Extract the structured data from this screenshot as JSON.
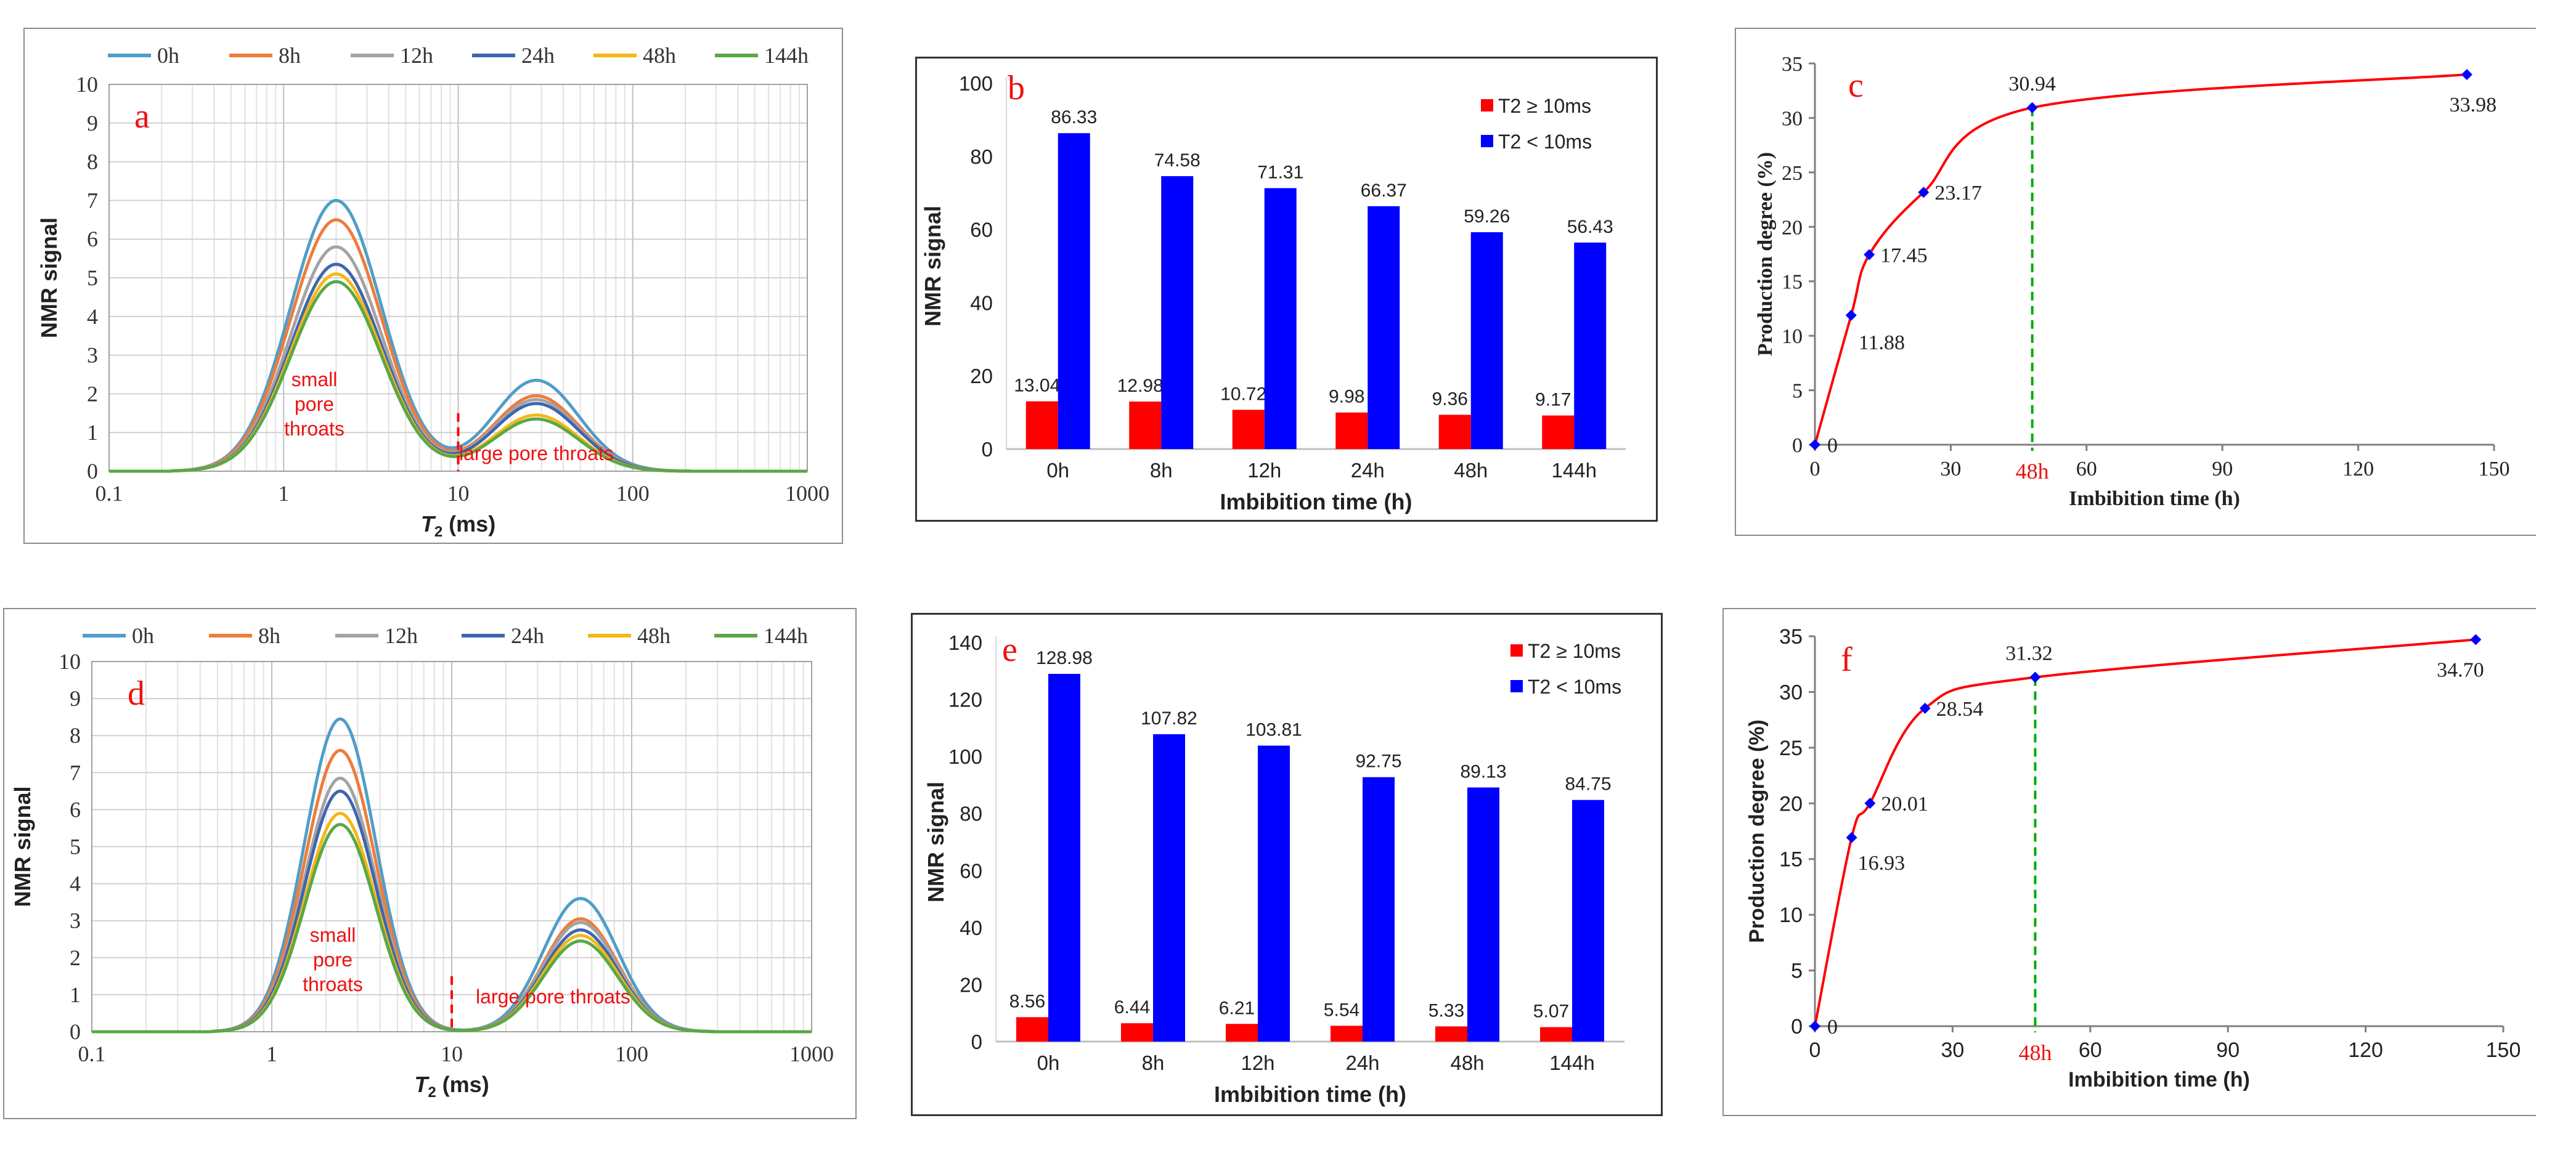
{
  "colors": {
    "0h": "#4f9ec9",
    "8h": "#ee7c3a",
    "12h": "#a3a3a3",
    "24h": "#3e66b0",
    "48h": "#f5b716",
    "144h": "#5aa845",
    "t2_ge": "#ff0000",
    "t2_lt": "#0000ff",
    "curve": "#ff0000",
    "point": "#0000ff",
    "dash_red": "#ff0000",
    "dash_green": "#00aa00"
  },
  "panels": {
    "a": {
      "letter": "a",
      "chart_data": {
        "type": "line",
        "x_scale": "log",
        "xlim": [
          0.1,
          1000
        ],
        "ylim": [
          0,
          10
        ],
        "xlabel_italic": "T",
        "xlabel_sub": "2",
        "xlabel_rest": " (ms)",
        "ylabel": "NMR signal",
        "xtick_labels": [
          "0.1",
          "1",
          "10",
          "100",
          "1000"
        ],
        "ytick_labels": [
          "0",
          "1",
          "2",
          "3",
          "4",
          "5",
          "6",
          "7",
          "8",
          "9",
          "10"
        ],
        "legend_placement": "top",
        "series": [
          {
            "name": "0h",
            "peak1": 7.0,
            "peak2": 2.35
          },
          {
            "name": "8h",
            "peak1": 6.5,
            "peak2": 1.95
          },
          {
            "name": "12h",
            "peak1": 5.8,
            "peak2": 1.85
          },
          {
            "name": "24h",
            "peak1": 5.35,
            "peak2": 1.75
          },
          {
            "name": "48h",
            "peak1": 5.1,
            "peak2": 1.45
          },
          {
            "name": "144h",
            "peak1": 4.9,
            "peak2": 1.35
          }
        ],
        "peak1_t2": 2.0,
        "peak2_t2": 28,
        "start_t2": 0.22,
        "end_t2": 220,
        "divider_t2": 10,
        "annotations": [
          "small",
          "pore",
          "throats",
          "large pore throats"
        ]
      }
    },
    "b": {
      "letter": "b",
      "chart_data": {
        "type": "bar",
        "categories": [
          "0h",
          "8h",
          "12h",
          "24h",
          "48h",
          "144h"
        ],
        "series": [
          {
            "name": "T2 ≥ 10ms",
            "values": [
              13.04,
              12.98,
              10.72,
              9.98,
              9.36,
              9.17
            ],
            "labels": [
              "13.04",
              "12.98",
              "10.72",
              "9.98",
              "9.36",
              "9.17"
            ]
          },
          {
            "name": "T2 < 10ms",
            "values": [
              86.33,
              74.58,
              71.31,
              66.37,
              59.26,
              56.43
            ],
            "labels": [
              "86.33",
              "74.58",
              "71.31",
              "66.37",
              "59.26",
              "56.43"
            ]
          }
        ],
        "ylim": [
          0,
          100
        ],
        "ytick_labels": [
          "0",
          "20",
          "40",
          "60",
          "80",
          "100"
        ],
        "xlabel": "Imbibition time (h)",
        "ylabel": "NMR signal",
        "legend_placement": "top-right"
      }
    },
    "c": {
      "letter": "c",
      "chart_data": {
        "type": "line",
        "x": [
          0,
          8,
          12,
          24,
          48,
          144
        ],
        "y": [
          0,
          11.88,
          17.45,
          23.17,
          30.94,
          33.98
        ],
        "point_labels": [
          "0",
          "11.88",
          "17.45",
          "23.17",
          "30.94",
          "33.98"
        ],
        "xlim": [
          0,
          150
        ],
        "ylim": [
          0,
          35
        ],
        "xtick_labels": [
          "0",
          "30",
          "60",
          "90",
          "120",
          "150"
        ],
        "ytick_labels": [
          "0",
          "5",
          "10",
          "15",
          "20",
          "25",
          "30",
          "35"
        ],
        "xlabel": "Imbibition time (h)",
        "ylabel": "Production degree (%)",
        "marker_label": "48h",
        "marker_x": 48
      }
    },
    "d": {
      "letter": "d",
      "chart_data": {
        "type": "line",
        "x_scale": "log",
        "xlim": [
          0.1,
          1000
        ],
        "ylim": [
          0,
          10
        ],
        "xlabel_italic": "T",
        "xlabel_sub": "2",
        "xlabel_rest": " (ms)",
        "ylabel": "NMR signal",
        "xtick_labels": [
          "0.1",
          "1",
          "10",
          "100",
          "1000"
        ],
        "ytick_labels": [
          "0",
          "1",
          "2",
          "3",
          "4",
          "5",
          "6",
          "7",
          "8",
          "9",
          "10"
        ],
        "legend_placement": "top",
        "series": [
          {
            "name": "0h",
            "peak1": 8.45,
            "peak2": 3.6
          },
          {
            "name": "8h",
            "peak1": 7.6,
            "peak2": 3.05
          },
          {
            "name": "12h",
            "peak1": 6.85,
            "peak2": 2.95
          },
          {
            "name": "24h",
            "peak1": 6.5,
            "peak2": 2.75
          },
          {
            "name": "48h",
            "peak1": 5.9,
            "peak2": 2.6
          },
          {
            "name": "144h",
            "peak1": 5.6,
            "peak2": 2.45
          }
        ],
        "peak1_t2": 2.4,
        "peak2_t2": 52,
        "start_t2": 0.45,
        "end_t2": 300,
        "divider_t2": 10,
        "annotations": [
          "small",
          "pore",
          "throats",
          "large pore throats"
        ]
      }
    },
    "e": {
      "letter": "e",
      "chart_data": {
        "type": "bar",
        "categories": [
          "0h",
          "8h",
          "12h",
          "24h",
          "48h",
          "144h"
        ],
        "series": [
          {
            "name": "T2 ≥ 10ms",
            "values": [
              8.56,
              6.44,
              6.21,
              5.54,
              5.33,
              5.07
            ],
            "labels": [
              "8.56",
              "6.44",
              "6.21",
              "5.54",
              "5.33",
              "5.07"
            ]
          },
          {
            "name": "T2 < 10ms",
            "values": [
              128.98,
              107.82,
              103.81,
              92.75,
              89.13,
              84.75
            ],
            "labels": [
              "128.98",
              "107.82",
              "103.81",
              "92.75",
              "89.13",
              "84.75"
            ]
          }
        ],
        "ylim": [
          0,
          140
        ],
        "ytick_labels": [
          "0",
          "20",
          "40",
          "60",
          "80",
          "100",
          "120",
          "140"
        ],
        "xlabel": "Imbibition time (h)",
        "ylabel": "NMR signal",
        "legend_placement": "top-right"
      }
    },
    "f": {
      "letter": "f",
      "chart_data": {
        "type": "line",
        "x": [
          0,
          8,
          12,
          24,
          48,
          144
        ],
        "y": [
          0,
          16.93,
          20.01,
          28.54,
          31.32,
          34.7
        ],
        "point_labels": [
          "0",
          "16.93",
          "20.01",
          "28.54",
          "31.32",
          "34.70"
        ],
        "xlim": [
          0,
          150
        ],
        "ylim": [
          0,
          35
        ],
        "xtick_labels": [
          "0",
          "30",
          "60",
          "90",
          "120",
          "150"
        ],
        "ytick_labels": [
          "0",
          "5",
          "10",
          "15",
          "20",
          "25",
          "30",
          "35"
        ],
        "xlabel": "Imbibition time (h)",
        "ylabel": "Production degree (%)",
        "marker_label": "48h",
        "marker_x": 48
      }
    }
  }
}
